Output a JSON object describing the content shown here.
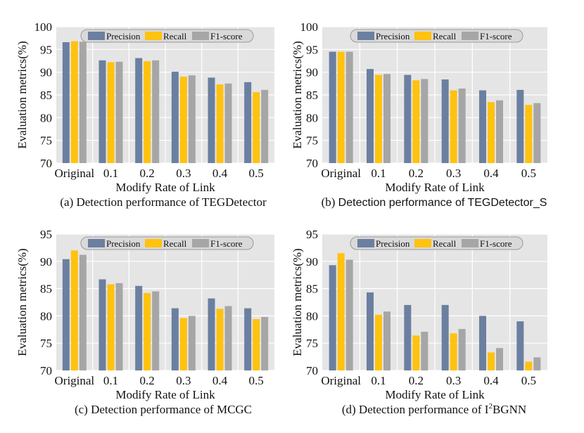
{
  "colors": {
    "precision": "#6b7fa0",
    "recall": "#ffc20e",
    "f1": "#a6a6a6",
    "plot_bg": "#e5e5e5",
    "grid": "#ffffff",
    "legend_bg": "#d9d9d9"
  },
  "chart_data": [
    {
      "type": "bar",
      "caption": "(a) Detection performance of TEGDetector",
      "xlabel": "Modify Rate of Link",
      "ylabel": "Evaluation metrics(%)",
      "ylim": [
        70,
        100
      ],
      "yticks": [
        70,
        75,
        80,
        85,
        90,
        95,
        100
      ],
      "categories": [
        "Original",
        "0.1",
        "0.2",
        "0.3",
        "0.4",
        "0.5"
      ],
      "legend": "top-right",
      "series": [
        {
          "name": "Precision",
          "values": [
            96.6,
            92.6,
            93.1,
            90.1,
            88.8,
            87.8
          ]
        },
        {
          "name": "Recall",
          "values": [
            96.8,
            92.2,
            92.4,
            89.0,
            87.3,
            85.6
          ]
        },
        {
          "name": "F1-score",
          "values": [
            96.7,
            92.3,
            92.6,
            89.3,
            87.5,
            86.1
          ]
        }
      ]
    },
    {
      "type": "bar",
      "caption": "(b) Detection performance of TEGDetector_S",
      "xlabel": "Modify Rate of Link",
      "ylabel": "Evaluation metrics(%)",
      "ylim": [
        70,
        100
      ],
      "yticks": [
        70,
        75,
        80,
        85,
        90,
        95,
        100
      ],
      "categories": [
        "Original",
        "0.1",
        "0.2",
        "0.3",
        "0.4",
        "0.5"
      ],
      "legend": "top-right",
      "series": [
        {
          "name": "Precision",
          "values": [
            94.5,
            90.7,
            89.4,
            88.4,
            86.0,
            86.1
          ]
        },
        {
          "name": "Recall",
          "values": [
            94.5,
            89.4,
            88.2,
            86.0,
            83.4,
            82.8
          ]
        },
        {
          "name": "F1-score",
          "values": [
            94.5,
            89.6,
            88.5,
            86.4,
            83.8,
            83.2
          ]
        }
      ]
    },
    {
      "type": "bar",
      "caption": "(c) Detection performance of  MCGC",
      "xlabel": "Modify Rate of Link",
      "ylabel": "Evaluation metrics(%)",
      "ylim": [
        70,
        95
      ],
      "yticks": [
        70,
        75,
        80,
        85,
        90,
        95
      ],
      "categories": [
        "Original",
        "0.1",
        "0.2",
        "0.3",
        "0.4",
        "0.5"
      ],
      "legend": "top-right",
      "series": [
        {
          "name": "Precision",
          "values": [
            90.4,
            86.7,
            85.5,
            81.4,
            83.2,
            81.4
          ]
        },
        {
          "name": "Recall",
          "values": [
            92.0,
            85.8,
            84.2,
            79.6,
            81.3,
            79.4
          ]
        },
        {
          "name": "F1-score",
          "values": [
            91.2,
            86.0,
            84.5,
            80.0,
            81.8,
            79.8
          ]
        }
      ]
    },
    {
      "type": "bar",
      "caption_prefix": "(d) Detection performance of I",
      "caption_sup": "2",
      "caption_suffix": "BGNN",
      "xlabel": "Modify Rate of Link",
      "ylabel": "Evaluation metrics(%)",
      "ylim": [
        70,
        95
      ],
      "yticks": [
        70,
        75,
        80,
        85,
        90,
        95
      ],
      "categories": [
        "Original",
        "0.1",
        "0.2",
        "0.3",
        "0.4",
        "0.5"
      ],
      "legend": "top-right",
      "series": [
        {
          "name": "Precision",
          "values": [
            89.3,
            84.3,
            82.0,
            82.0,
            80.0,
            79.0
          ]
        },
        {
          "name": "Recall",
          "values": [
            91.5,
            80.2,
            76.4,
            76.8,
            73.3,
            71.6
          ]
        },
        {
          "name": "F1-score",
          "values": [
            90.3,
            80.8,
            77.1,
            77.6,
            74.1,
            72.4
          ]
        }
      ]
    }
  ]
}
